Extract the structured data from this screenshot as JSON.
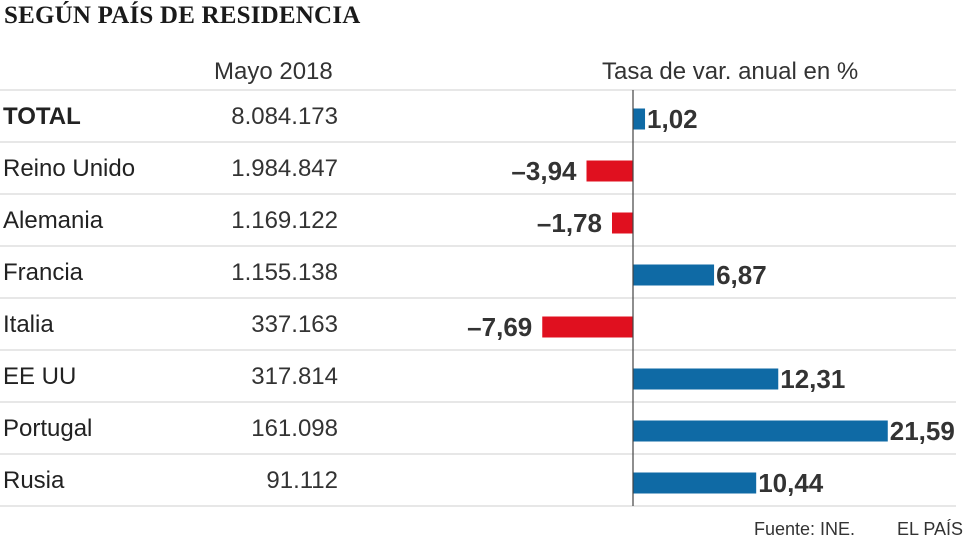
{
  "header": {
    "title": "SEGÚN PAÍS DE RESIDENCIA",
    "col_value": "Mayo 2018",
    "col_rate": "Tasa de var. anual en %"
  },
  "footer": {
    "source": "Fuente: INE.",
    "brand": "EL PAÍS"
  },
  "colors": {
    "positive": "#0f6aa5",
    "negative": "#e0101f",
    "rule": "#cfcfcf",
    "axis": "#444444"
  },
  "chart_data": {
    "type": "bar",
    "title": "SEGÚN PAÍS DE RESIDENCIA",
    "xlabel": "Tasa de var. anual en %",
    "ylabel": "",
    "categories": [
      "TOTAL",
      "Reino Unido",
      "Alemania",
      "Francia",
      "Italia",
      "EE UU",
      "Portugal",
      "Rusia"
    ],
    "emphasized": [
      "TOTAL"
    ],
    "values_label": "Mayo 2018",
    "values_text": [
      "8.084.173",
      "1.984.847",
      "1.169.122",
      "1.155.138",
      "337.163",
      "317.814",
      "161.098",
      "91.112"
    ],
    "values": [
      8084173,
      1984847,
      1169122,
      1155138,
      337163,
      317814,
      161098,
      91112
    ],
    "rates": [
      1.02,
      -3.94,
      -1.78,
      6.87,
      -7.69,
      12.31,
      21.59,
      10.44
    ],
    "rate_labels": [
      "1,02",
      "–3,94",
      "–1,78",
      "6,87",
      "–7,69",
      "12,31",
      "21,59",
      "10,44"
    ],
    "xlim": [
      -8,
      22
    ]
  }
}
